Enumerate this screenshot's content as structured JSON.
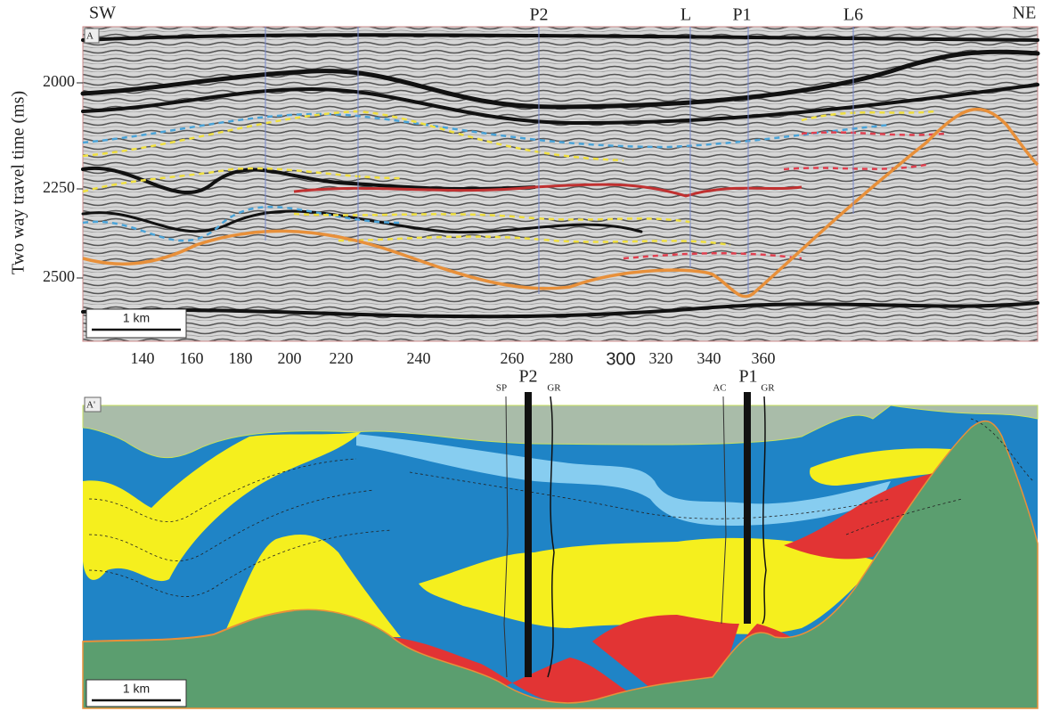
{
  "top_panel": {
    "label": "A",
    "left_direction": "SW",
    "right_direction": "NE",
    "markers": [
      "P2",
      "L",
      "P1",
      "L6"
    ],
    "y_axis_title": "Two way travel time (ms)",
    "y_ticks": [
      2000,
      2250,
      2500
    ],
    "x_ticks": [
      140,
      160,
      180,
      200,
      220,
      240,
      260,
      280,
      300,
      320,
      340,
      360
    ],
    "scale_bar": "1 km"
  },
  "bottom_panel": {
    "label": "A'",
    "wells": [
      {
        "name": "P2",
        "left_log": "SP",
        "right_log": "GR"
      },
      {
        "name": "P1",
        "left_log": "AC",
        "right_log": "GR"
      }
    ],
    "scale_bar": "1 km"
  }
}
